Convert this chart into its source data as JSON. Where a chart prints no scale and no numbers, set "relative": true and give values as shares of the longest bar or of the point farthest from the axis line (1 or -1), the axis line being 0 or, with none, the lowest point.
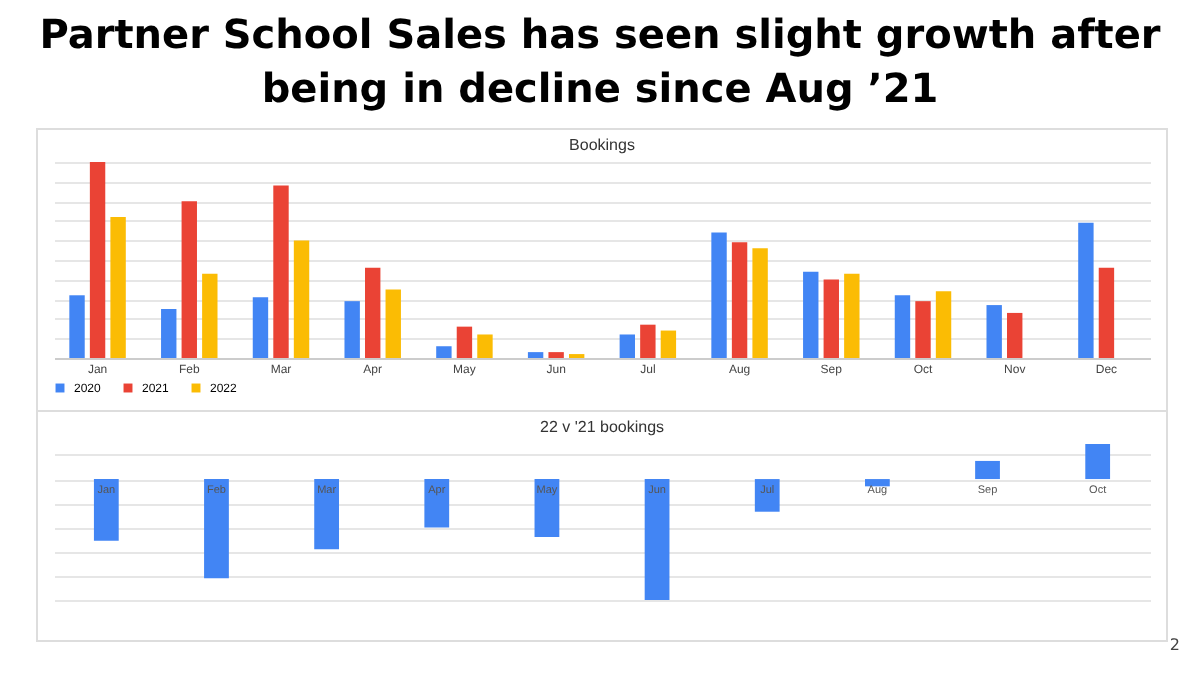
{
  "chart_data": [
    {
      "type": "bar",
      "title": "Partner School Sales has seen slight growth after being in decline since Aug ’21",
      "subtitle": "Bookings",
      "relative": true,
      "grid": "y",
      "legend": "bottom",
      "categories": [
        "Jan",
        "Feb",
        "Mar",
        "Apr",
        "May",
        "Jun",
        "Jul",
        "Aug",
        "Sep",
        "Oct",
        "Nov",
        "Dec"
      ],
      "series": [
        {
          "name": "2020",
          "color": "#4285f4",
          "values": [
            0.32,
            0.25,
            0.31,
            0.29,
            0.06,
            0.03,
            0.12,
            0.64,
            0.44,
            0.32,
            0.27,
            0.69
          ]
        },
        {
          "name": "2021",
          "color": "#ea4335",
          "values": [
            1,
            0.8,
            0.88,
            0.46,
            0.16,
            0.03,
            0.17,
            0.59,
            0.4,
            0.29,
            0.23,
            0.46
          ]
        },
        {
          "name": "2022",
          "color": "#fbbc04",
          "values": [
            0.72,
            0.43,
            0.6,
            0.35,
            0.12,
            0.02,
            0.14,
            0.56,
            0.43,
            0.34,
            null,
            null
          ]
        }
      ]
    },
    {
      "type": "bar",
      "title": "22 v '21 bookings",
      "relative": true,
      "grid": "y",
      "annotations": [
        "2"
      ],
      "categories": [
        "Jan",
        "Feb",
        "Mar",
        "Apr",
        "May",
        "Jun",
        "Jul",
        "Aug",
        "Sep",
        "Oct"
      ],
      "series": [
        {
          "color": "#4285f4",
          "values": [
            -0.51,
            -0.82,
            -0.58,
            -0.4,
            -0.48,
            -1,
            -0.27,
            -0.06,
            0.15,
            0.29
          ]
        }
      ]
    }
  ]
}
